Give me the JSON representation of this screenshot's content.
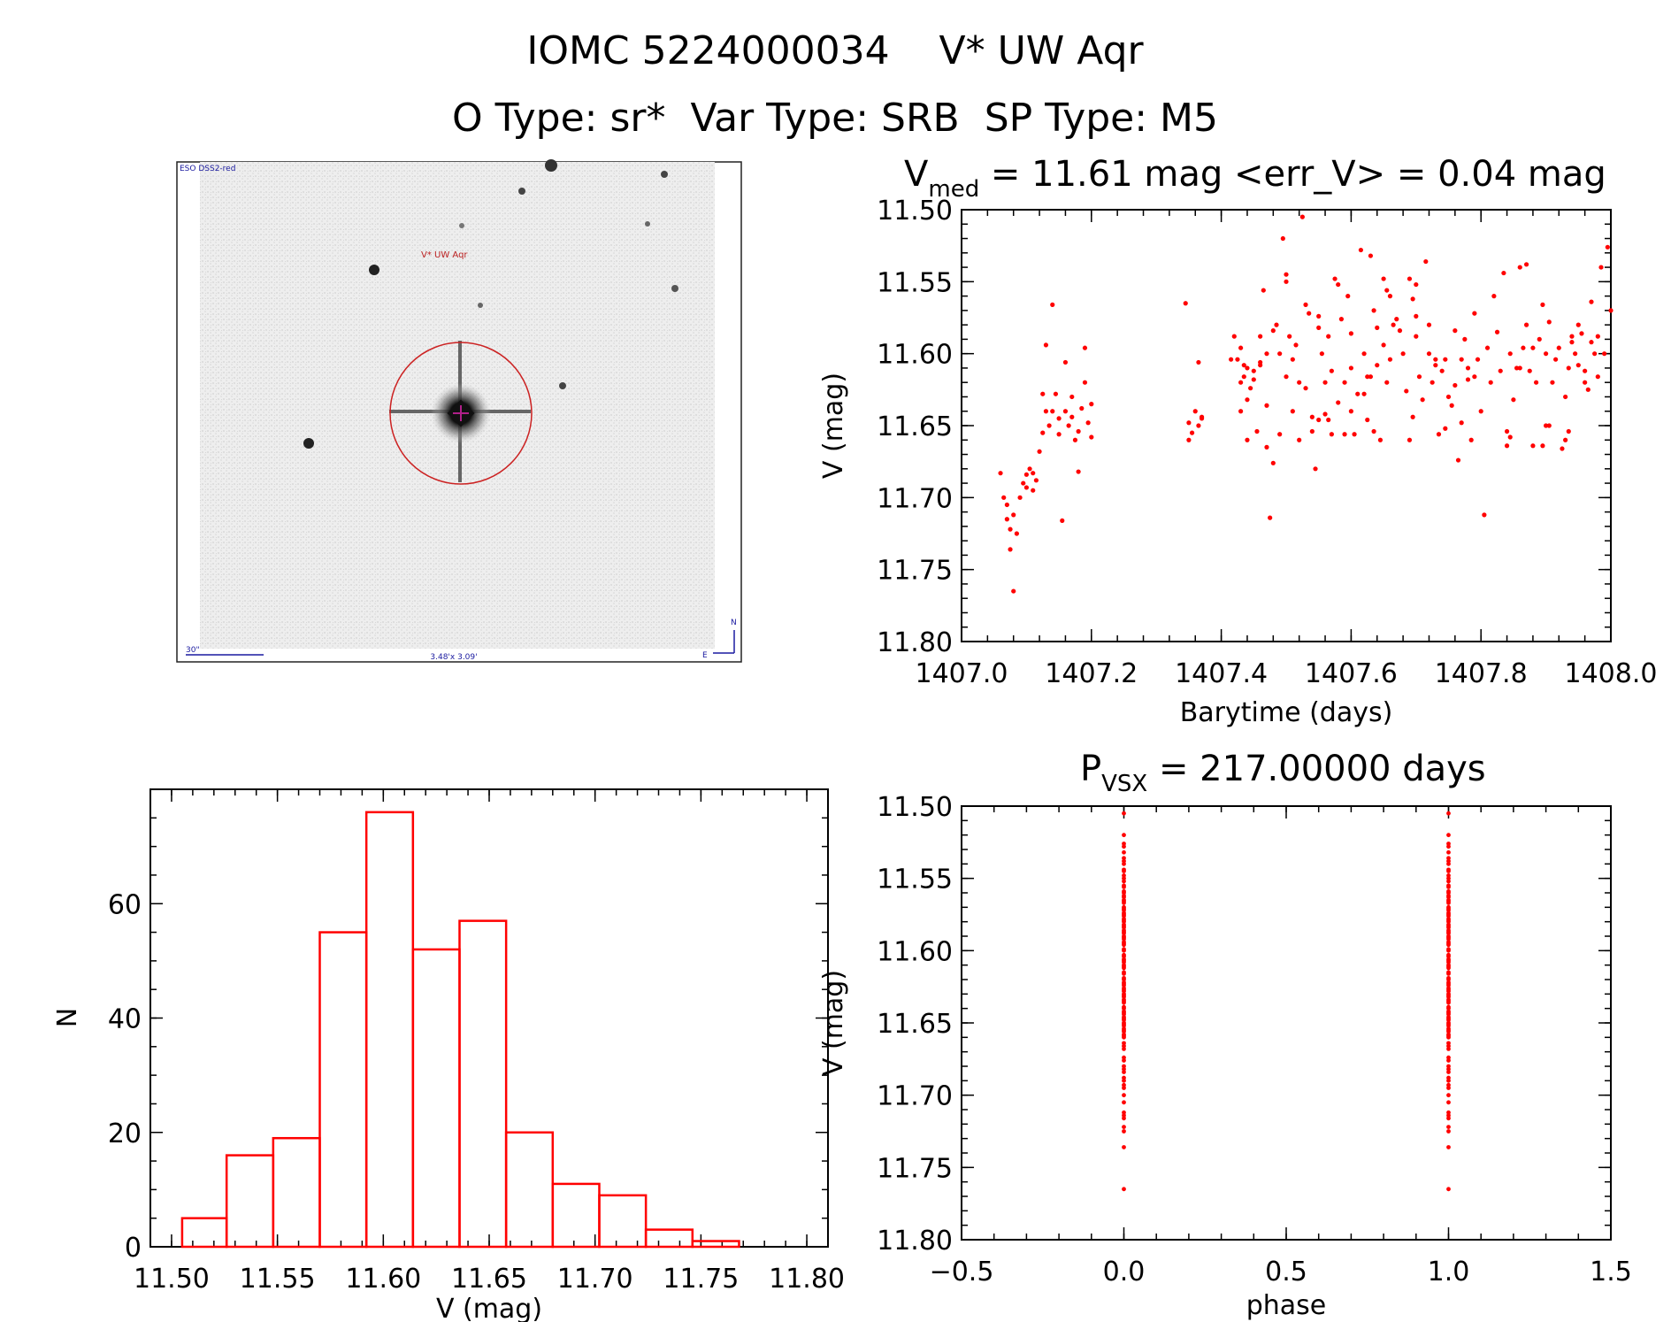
{
  "figure": {
    "title": "IOMC 5224000034    V* UW Aqr",
    "subtitle": "O Type: sr*  Var Type: SRB  SP Type: M5"
  },
  "finder": {
    "survey_label": "ESO DSS2-red",
    "target_label": "V* UW Aqr",
    "scale_label": "30\"",
    "fov_label": "3.48'x 3.09'",
    "north_label": "N",
    "east_label": "E"
  },
  "chart_data": [
    {
      "id": "lightcurve",
      "type": "scatter",
      "title_main": "V",
      "title_sub": "med",
      "title_rest": " = 11.61 mag <err_V> = 0.04 mag",
      "xlabel": "Barytime (days)",
      "ylabel": "V (mag)",
      "xlim": [
        1407.0,
        1408.0
      ],
      "ylim": [
        11.5,
        11.8
      ],
      "y_inverted": true,
      "xticks": [
        "1407.0",
        "1407.2",
        "1407.4",
        "1407.6",
        "1407.8",
        "1408.0"
      ],
      "yticks": [
        "11.50",
        "11.55",
        "11.60",
        "11.65",
        "11.70",
        "11.75",
        "11.80"
      ],
      "marker_color": "#ff0000",
      "points": [
        [
          1407.06,
          11.683
        ],
        [
          1407.065,
          11.7
        ],
        [
          1407.07,
          11.705
        ],
        [
          1407.07,
          11.715
        ],
        [
          1407.075,
          11.722
        ],
        [
          1407.075,
          11.736
        ],
        [
          1407.08,
          11.712
        ],
        [
          1407.08,
          11.765
        ],
        [
          1407.085,
          11.725
        ],
        [
          1407.09,
          11.7
        ],
        [
          1407.095,
          11.69
        ],
        [
          1407.1,
          11.684
        ],
        [
          1407.1,
          11.693
        ],
        [
          1407.105,
          11.68
        ],
        [
          1407.11,
          11.695
        ],
        [
          1407.11,
          11.683
        ],
        [
          1407.115,
          11.688
        ],
        [
          1407.12,
          11.668
        ],
        [
          1407.125,
          11.628
        ],
        [
          1407.125,
          11.655
        ],
        [
          1407.13,
          11.594
        ],
        [
          1407.13,
          11.64
        ],
        [
          1407.135,
          11.65
        ],
        [
          1407.14,
          11.566
        ],
        [
          1407.14,
          11.64
        ],
        [
          1407.145,
          11.628
        ],
        [
          1407.15,
          11.645
        ],
        [
          1407.15,
          11.656
        ],
        [
          1407.155,
          11.716
        ],
        [
          1407.16,
          11.64
        ],
        [
          1407.16,
          11.606
        ],
        [
          1407.165,
          11.65
        ],
        [
          1407.17,
          11.63
        ],
        [
          1407.17,
          11.644
        ],
        [
          1407.175,
          11.66
        ],
        [
          1407.18,
          11.682
        ],
        [
          1407.18,
          11.654
        ],
        [
          1407.185,
          11.638
        ],
        [
          1407.19,
          11.596
        ],
        [
          1407.19,
          11.62
        ],
        [
          1407.195,
          11.648
        ],
        [
          1407.2,
          11.635
        ],
        [
          1407.2,
          11.658
        ],
        [
          1407.345,
          11.565
        ],
        [
          1407.35,
          11.648
        ],
        [
          1407.35,
          11.66
        ],
        [
          1407.355,
          11.655
        ],
        [
          1407.36,
          11.64
        ],
        [
          1407.365,
          11.65
        ],
        [
          1407.365,
          11.606
        ],
        [
          1407.37,
          11.645
        ],
        [
          1407.37,
          11.644
        ],
        [
          1407.425,
          11.604
        ],
        [
          1407.43,
          11.62
        ],
        [
          1407.435,
          11.616
        ],
        [
          1407.44,
          11.61
        ],
        [
          1407.44,
          11.66
        ],
        [
          1407.445,
          11.624
        ],
        [
          1407.45,
          11.612
        ],
        [
          1407.45,
          11.618
        ],
        [
          1407.455,
          11.654
        ],
        [
          1407.46,
          11.588
        ],
        [
          1407.46,
          11.608
        ],
        [
          1407.465,
          11.556
        ],
        [
          1407.47,
          11.6
        ],
        [
          1407.47,
          11.665
        ],
        [
          1407.475,
          11.714
        ],
        [
          1407.48,
          11.584
        ],
        [
          1407.48,
          11.676
        ],
        [
          1407.485,
          11.58
        ],
        [
          1407.49,
          11.6
        ],
        [
          1407.49,
          11.656
        ],
        [
          1407.495,
          11.52
        ],
        [
          1407.5,
          11.545
        ],
        [
          1407.5,
          11.616
        ],
        [
          1407.505,
          11.588
        ],
        [
          1407.51,
          11.604
        ],
        [
          1407.51,
          11.64
        ],
        [
          1407.515,
          11.594
        ],
        [
          1407.52,
          11.62
        ],
        [
          1407.52,
          11.66
        ],
        [
          1407.525,
          11.505
        ],
        [
          1407.53,
          11.566
        ],
        [
          1407.53,
          11.624
        ],
        [
          1407.535,
          11.572
        ],
        [
          1407.54,
          11.654
        ],
        [
          1407.54,
          11.644
        ],
        [
          1407.545,
          11.68
        ],
        [
          1407.55,
          11.582
        ],
        [
          1407.55,
          11.646
        ],
        [
          1407.555,
          11.6
        ],
        [
          1407.56,
          11.62
        ],
        [
          1407.565,
          11.588
        ],
        [
          1407.57,
          11.612
        ],
        [
          1407.575,
          11.548
        ],
        [
          1407.58,
          11.552
        ],
        [
          1407.58,
          11.634
        ],
        [
          1407.585,
          11.576
        ],
        [
          1407.59,
          11.62
        ],
        [
          1407.595,
          11.56
        ],
        [
          1407.6,
          11.586
        ],
        [
          1407.6,
          11.61
        ],
        [
          1407.605,
          11.656
        ],
        [
          1407.61,
          11.628
        ],
        [
          1407.615,
          11.528
        ],
        [
          1407.62,
          11.6
        ],
        [
          1407.625,
          11.646
        ],
        [
          1407.63,
          11.532
        ],
        [
          1407.63,
          11.616
        ],
        [
          1407.635,
          11.654
        ],
        [
          1407.64,
          11.608
        ],
        [
          1407.645,
          11.66
        ],
        [
          1407.65,
          11.594
        ],
        [
          1407.655,
          11.62
        ],
        [
          1407.66,
          11.604
        ],
        [
          1407.665,
          11.58
        ],
        [
          1407.67,
          11.576
        ],
        [
          1407.675,
          11.584
        ],
        [
          1407.68,
          11.6
        ],
        [
          1407.685,
          11.626
        ],
        [
          1407.69,
          11.66
        ],
        [
          1407.695,
          11.644
        ],
        [
          1407.7,
          11.588
        ],
        [
          1407.705,
          11.616
        ],
        [
          1407.71,
          11.632
        ],
        [
          1407.715,
          11.536
        ],
        [
          1407.72,
          11.58
        ],
        [
          1407.725,
          11.62
        ],
        [
          1407.73,
          11.604
        ],
        [
          1407.735,
          11.656
        ],
        [
          1407.74,
          11.612
        ],
        [
          1407.745,
          11.652
        ],
        [
          1407.75,
          11.63
        ],
        [
          1407.755,
          11.636
        ],
        [
          1407.76,
          11.622
        ],
        [
          1407.765,
          11.674
        ],
        [
          1407.77,
          11.648
        ],
        [
          1407.775,
          11.59
        ],
        [
          1407.78,
          11.618
        ],
        [
          1407.785,
          11.66
        ],
        [
          1407.79,
          11.572
        ],
        [
          1407.795,
          11.604
        ],
        [
          1407.8,
          11.64
        ],
        [
          1407.805,
          11.712
        ],
        [
          1407.81,
          11.596
        ],
        [
          1407.815,
          11.62
        ],
        [
          1407.82,
          11.56
        ],
        [
          1407.825,
          11.585
        ],
        [
          1407.83,
          11.612
        ],
        [
          1407.835,
          11.544
        ],
        [
          1407.84,
          11.654
        ],
        [
          1407.845,
          11.6
        ],
        [
          1407.85,
          11.632
        ],
        [
          1407.855,
          11.61
        ],
        [
          1407.86,
          11.61
        ],
        [
          1407.865,
          11.596
        ],
        [
          1407.87,
          11.58
        ],
        [
          1407.875,
          11.612
        ],
        [
          1407.88,
          11.664
        ],
        [
          1407.885,
          11.62
        ],
        [
          1407.89,
          11.59
        ],
        [
          1407.895,
          11.566
        ],
        [
          1407.9,
          11.6
        ],
        [
          1407.905,
          11.65
        ],
        [
          1407.91,
          11.62
        ],
        [
          1407.915,
          11.604
        ],
        [
          1407.92,
          11.596
        ],
        [
          1407.925,
          11.666
        ],
        [
          1407.93,
          11.63
        ],
        [
          1407.935,
          11.61
        ],
        [
          1407.94,
          11.592
        ],
        [
          1407.945,
          11.6
        ],
        [
          1407.95,
          11.608
        ],
        [
          1407.955,
          11.586
        ],
        [
          1407.96,
          11.612
        ],
        [
          1407.965,
          11.625
        ],
        [
          1407.97,
          11.592
        ],
        [
          1407.975,
          11.6
        ],
        [
          1407.98,
          11.616
        ],
        [
          1407.985,
          11.54
        ],
        [
          1407.99,
          11.6
        ],
        [
          1407.995,
          11.526
        ],
        [
          1408.0,
          11.57
        ],
        [
          1407.86,
          11.54
        ],
        [
          1407.87,
          11.538
        ],
        [
          1407.94,
          11.588
        ],
        [
          1407.95,
          11.58
        ],
        [
          1407.97,
          11.564
        ],
        [
          1407.98,
          11.588
        ],
        [
          1407.96,
          11.62
        ],
        [
          1407.93,
          11.66
        ],
        [
          1407.935,
          11.654
        ],
        [
          1407.88,
          11.596
        ],
        [
          1407.905,
          11.578
        ],
        [
          1407.9,
          11.65
        ],
        [
          1407.895,
          11.664
        ],
        [
          1407.84,
          11.664
        ],
        [
          1407.845,
          11.658
        ],
        [
          1407.76,
          11.584
        ],
        [
          1407.77,
          11.604
        ],
        [
          1407.78,
          11.61
        ],
        [
          1407.79,
          11.616
        ],
        [
          1407.7,
          11.574
        ],
        [
          1407.72,
          11.6
        ],
        [
          1407.73,
          11.608
        ],
        [
          1407.745,
          11.604
        ],
        [
          1407.65,
          11.548
        ],
        [
          1407.655,
          11.556
        ],
        [
          1407.66,
          11.56
        ],
        [
          1407.7,
          11.552
        ],
        [
          1407.69,
          11.548
        ],
        [
          1407.695,
          11.562
        ],
        [
          1407.5,
          11.55
        ],
        [
          1407.46,
          11.606
        ],
        [
          1407.47,
          11.636
        ],
        [
          1407.42,
          11.588
        ],
        [
          1407.43,
          11.596
        ],
        [
          1407.415,
          11.604
        ],
        [
          1407.44,
          11.632
        ],
        [
          1407.43,
          11.64
        ],
        [
          1407.435,
          11.608
        ],
        [
          1407.55,
          11.574
        ],
        [
          1407.56,
          11.642
        ],
        [
          1407.565,
          11.646
        ],
        [
          1407.57,
          11.656
        ],
        [
          1407.59,
          11.656
        ],
        [
          1407.6,
          11.64
        ],
        [
          1407.62,
          11.628
        ],
        [
          1407.625,
          11.616
        ],
        [
          1407.635,
          11.57
        ],
        [
          1407.64,
          11.582
        ]
      ]
    },
    {
      "id": "histogram",
      "type": "bar",
      "xlabel": "V (mag)",
      "ylabel": "N",
      "xlim": [
        11.49,
        11.81
      ],
      "ylim": [
        0,
        80
      ],
      "xticks": [
        "11.50",
        "11.55",
        "11.60",
        "11.65",
        "11.70",
        "11.75",
        "11.80"
      ],
      "yticks": [
        "0",
        "20",
        "40",
        "60"
      ],
      "bar_color": "#ff0000",
      "bin_edges": [
        11.505,
        11.526,
        11.548,
        11.57,
        11.592,
        11.614,
        11.636,
        11.658,
        11.68,
        11.702,
        11.724,
        11.746,
        11.768
      ],
      "values": [
        5,
        16,
        19,
        55,
        76,
        52,
        57,
        20,
        11,
        9,
        3,
        1
      ]
    },
    {
      "id": "phased",
      "type": "scatter",
      "title_main": "P",
      "title_sub": "VSX",
      "title_rest": " = 217.00000 days",
      "xlabel": "phase",
      "ylabel": "V (mag)",
      "xlim": [
        -0.5,
        1.5
      ],
      "ylim": [
        11.5,
        11.8
      ],
      "y_inverted": true,
      "xticks": [
        "−0.5",
        "0.0",
        "0.5",
        "1.0",
        "1.5"
      ],
      "yticks": [
        "11.50",
        "11.55",
        "11.60",
        "11.65",
        "11.70",
        "11.75",
        "11.80"
      ],
      "marker_color": "#ff0000",
      "phase_columns": [
        0.0,
        1.0
      ],
      "column_values": [
        11.505,
        11.52,
        11.526,
        11.528,
        11.532,
        11.536,
        11.538,
        11.54,
        11.544,
        11.545,
        11.548,
        11.55,
        11.552,
        11.556,
        11.56,
        11.562,
        11.565,
        11.566,
        11.57,
        11.572,
        11.574,
        11.576,
        11.578,
        11.58,
        11.582,
        11.584,
        11.586,
        11.588,
        11.59,
        11.592,
        11.594,
        11.596,
        11.6,
        11.604,
        11.606,
        11.608,
        11.61,
        11.612,
        11.616,
        11.62,
        11.622,
        11.624,
        11.626,
        11.628,
        11.63,
        11.632,
        11.634,
        11.636,
        11.64,
        11.642,
        11.644,
        11.646,
        11.648,
        11.65,
        11.652,
        11.654,
        11.656,
        11.658,
        11.66,
        11.664,
        11.666,
        11.668,
        11.674,
        11.676,
        11.68,
        11.682,
        11.684,
        11.688,
        11.69,
        11.693,
        11.695,
        11.7,
        11.705,
        11.712,
        11.714,
        11.716,
        11.722,
        11.725,
        11.736,
        11.765
      ]
    }
  ]
}
